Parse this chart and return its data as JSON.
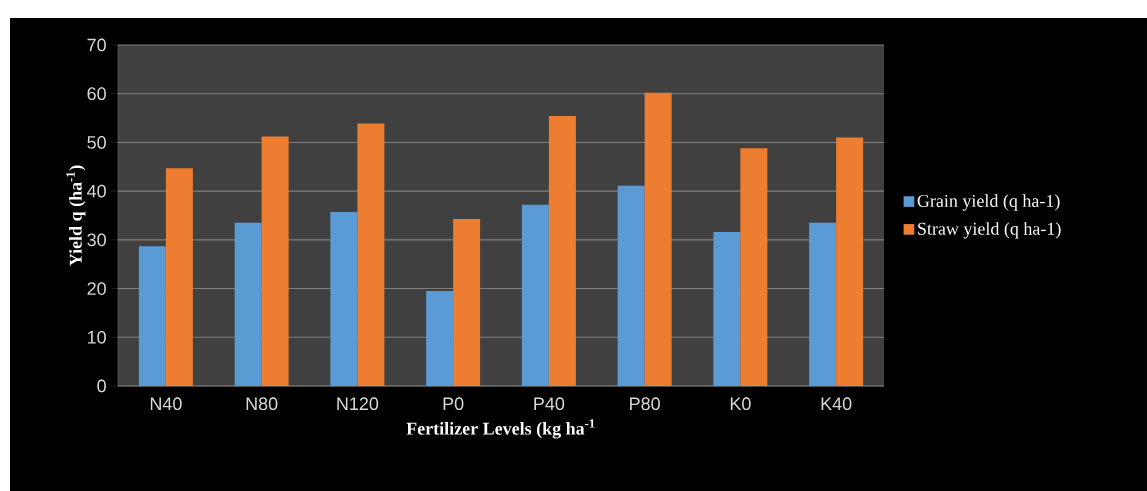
{
  "chart_data": {
    "type": "bar",
    "xlabel": "Fertilizer Levels (kg ha$^{-1}$",
    "ylabel": "Yield q (ha$^{-1}$)",
    "categories": [
      "N40",
      "N80",
      "N120",
      "P0",
      "P40",
      "P80",
      "K0",
      "K40"
    ],
    "series": [
      {
        "name": "Grain yield (q ha-1)",
        "color": "#5b9bd5",
        "values": [
          28.7,
          33.5,
          35.7,
          19.5,
          37.2,
          41.1,
          31.6,
          33.5
        ]
      },
      {
        "name": "Straw yield (q ha-1)",
        "color": "#ed7d31",
        "values": [
          44.7,
          51.2,
          53.9,
          34.3,
          55.4,
          60.2,
          48.8,
          51.0
        ]
      }
    ],
    "ylim": [
      0,
      70
    ],
    "yticks": [
      0,
      10,
      20,
      30,
      40,
      50,
      60,
      70
    ],
    "grid": "y",
    "legend": "right"
  }
}
